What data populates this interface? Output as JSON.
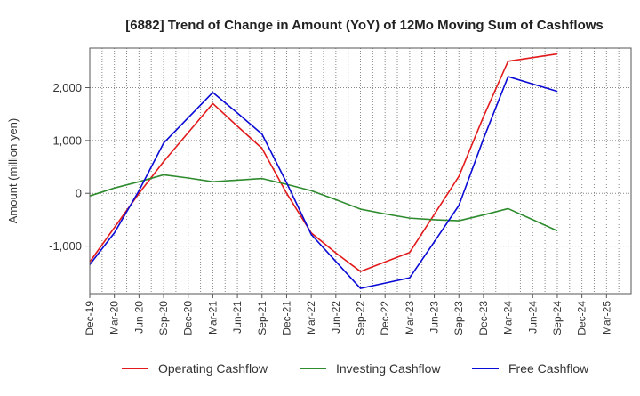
{
  "chart_data": {
    "type": "line",
    "title": "[6882]  Trend of Change in Amount (YoY) of 12Mo Moving Sum of Cashflows",
    "xlabel": "",
    "ylabel": "Amount (million yen)",
    "ylim": [
      -1900,
      2750
    ],
    "yticks": [
      -1000,
      0,
      1000,
      2000
    ],
    "ytick_labels": [
      "-1,000",
      "0",
      "1,000",
      "2,000"
    ],
    "categories": [
      "Dec-19",
      "Mar-20",
      "Jun-20",
      "Sep-20",
      "Dec-20",
      "Mar-21",
      "Jun-21",
      "Sep-21",
      "Dec-21",
      "Mar-22",
      "Jun-22",
      "Sep-22",
      "Dec-22",
      "Mar-23",
      "Jun-23",
      "Sep-23",
      "Dec-23",
      "Mar-24",
      "Jun-24",
      "Sep-24",
      "Dec-24",
      "Mar-25"
    ],
    "series": [
      {
        "name": "Operating Cashflow",
        "color": "#e31a1c",
        "values": [
          -1300,
          -650,
          0,
          600,
          1150,
          1700,
          1270,
          850,
          0,
          -750,
          -1130,
          -1480,
          -1300,
          -1120,
          -400,
          320,
          1450,
          2500,
          2570,
          2640,
          null,
          null
        ]
      },
      {
        "name": "Investing Cashflow",
        "color": "#2e8b2e",
        "values": [
          -50,
          100,
          220,
          350,
          290,
          220,
          250,
          280,
          170,
          50,
          -120,
          -300,
          -390,
          -470,
          -500,
          -520,
          -410,
          -290,
          -500,
          -710,
          null,
          null
        ]
      },
      {
        "name": "Free Cashflow",
        "color": "#0a0ad6",
        "values": [
          -1350,
          -750,
          50,
          950,
          1430,
          1910,
          1520,
          1120,
          200,
          -780,
          -1290,
          -1800,
          -1700,
          -1600,
          -920,
          -230,
          1030,
          2210,
          2070,
          1930,
          null,
          null
        ]
      }
    ],
    "grid": true,
    "legend": "bottom"
  }
}
